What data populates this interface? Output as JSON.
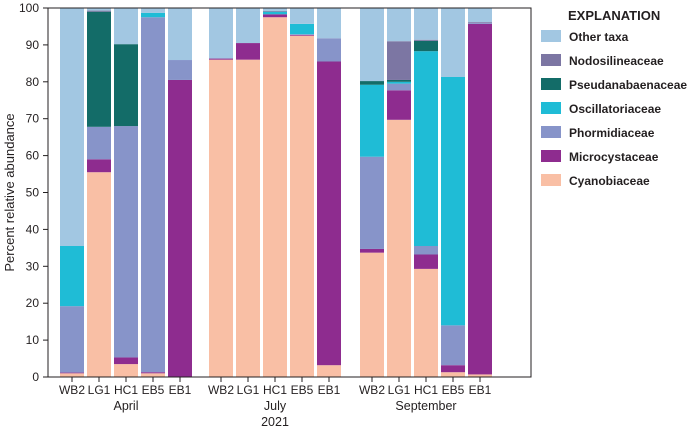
{
  "chart_data": {
    "type": "bar",
    "stacked": true,
    "ylabel": "Percent relative abundance",
    "ylim": [
      0,
      100
    ],
    "yticks": [
      0,
      10,
      20,
      30,
      40,
      50,
      60,
      70,
      80,
      90,
      100
    ],
    "grid": false,
    "legend": {
      "title": "EXPLANATION",
      "position": "right"
    },
    "year_label": "2021",
    "groups": [
      {
        "name": "April",
        "sites": [
          "WB2",
          "LG1",
          "HC1",
          "EB5",
          "EB1"
        ]
      },
      {
        "name": "July",
        "sites": [
          "WB2",
          "LG1",
          "HC1",
          "EB5",
          "EB1"
        ]
      },
      {
        "name": "September",
        "sites": [
          "WB2",
          "LG1",
          "HC1",
          "EB5",
          "EB1"
        ]
      }
    ],
    "series": [
      {
        "name": "Cyanobiaceae",
        "color": "#f9bfa5",
        "values": [
          1.0,
          55.5,
          3.5,
          1.0,
          0.0,
          86.0,
          86.0,
          97.5,
          92.5,
          3.2,
          33.7,
          69.7,
          29.3,
          1.3,
          0.7
        ]
      },
      {
        "name": "Microcystaceae",
        "color": "#8e2c8f",
        "values": [
          0.2,
          3.5,
          1.8,
          0.3,
          80.5,
          0.3,
          4.5,
          0.8,
          0.2,
          82.3,
          1.0,
          8.0,
          3.9,
          1.9,
          95.0
        ]
      },
      {
        "name": "Phormidiaceae",
        "color": "#8794c9",
        "values": [
          18.0,
          8.8,
          62.7,
          96.2,
          5.4,
          0.0,
          0.0,
          0.0,
          0.2,
          6.3,
          25.0,
          1.8,
          2.3,
          10.8,
          0.3
        ]
      },
      {
        "name": "Oscillatoriaceae",
        "color": "#1fbcd6",
        "values": [
          16.3,
          0.0,
          0.0,
          1.2,
          0.0,
          0.0,
          0.0,
          0.7,
          2.8,
          0.0,
          19.5,
          0.5,
          52.8,
          67.3,
          0.0
        ]
      },
      {
        "name": "Pseudanabaenaceae",
        "color": "#136c68",
        "values": [
          0.0,
          31.2,
          22.2,
          0.0,
          0.0,
          0.0,
          0.0,
          0.0,
          0.0,
          0.0,
          1.0,
          0.5,
          2.8,
          0.0,
          0.0
        ]
      },
      {
        "name": "Nodosilineaceae",
        "color": "#7c76a3",
        "values": [
          0.0,
          0.3,
          0.0,
          0.0,
          0.0,
          0.0,
          0.0,
          0.2,
          0.0,
          0.0,
          0.0,
          10.5,
          0.3,
          0.0,
          0.2
        ]
      },
      {
        "name": "Other taxa",
        "color": "#a2c7e2",
        "values": [
          64.5,
          0.7,
          9.8,
          1.3,
          14.1,
          13.7,
          9.5,
          0.8,
          4.3,
          8.2,
          19.8,
          9.0,
          8.6,
          18.7,
          3.8
        ]
      }
    ],
    "legend_order": [
      "Other taxa",
      "Nodosilineaceae",
      "Pseudanabaenaceae",
      "Oscillatoriaceae",
      "Phormidiaceae",
      "Microcystaceae",
      "Cyanobiaceae"
    ]
  }
}
